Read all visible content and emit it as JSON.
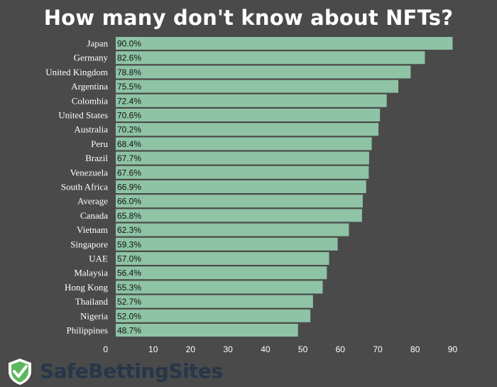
{
  "brand": {
    "name": "SafeBettingSites",
    "logo_icon": "shield-check-icon"
  },
  "colors": {
    "background": "#4a4a4a",
    "bar": "#8ec3a5",
    "brand_text": "#27364a",
    "logo_green": "#5cb85c"
  },
  "chart_data": {
    "type": "bar",
    "orientation": "horizontal",
    "title": "How many don't know about NFTs?",
    "categories": [
      "Japan",
      "Germany",
      "United Kingdom",
      "Argentina",
      "Colombia",
      "United States",
      "Australia",
      "Peru",
      "Brazil",
      "Venezuela",
      "South Africa",
      "Average",
      "Canada",
      "Vietnam",
      "Singapore",
      "UAE",
      "Malaysia",
      "Hong Kong",
      "Thailand",
      "Nigeria",
      "Philippines"
    ],
    "values": [
      90.0,
      82.6,
      78.8,
      75.5,
      72.4,
      70.6,
      70.2,
      68.4,
      67.7,
      67.6,
      66.9,
      66.0,
      65.8,
      62.3,
      59.3,
      57.0,
      56.4,
      55.3,
      52.7,
      52.0,
      48.7
    ],
    "value_labels": [
      "90.0%",
      "82.6%",
      "78.8%",
      "75.5%",
      "72.4%",
      "70.6%",
      "70.2%",
      "68.4%",
      "67.7%",
      "67.6%",
      "66.9%",
      "66.0%",
      "65.8%",
      "62.3%",
      "59.3%",
      "57.0%",
      "56.4%",
      "55.3%",
      "52.7%",
      "52.0%",
      "48.7%"
    ],
    "xticks": [
      0,
      10,
      20,
      30,
      40,
      50,
      60,
      70,
      80,
      90
    ],
    "xlim": [
      0,
      92
    ],
    "grid": false,
    "legend": "none"
  }
}
